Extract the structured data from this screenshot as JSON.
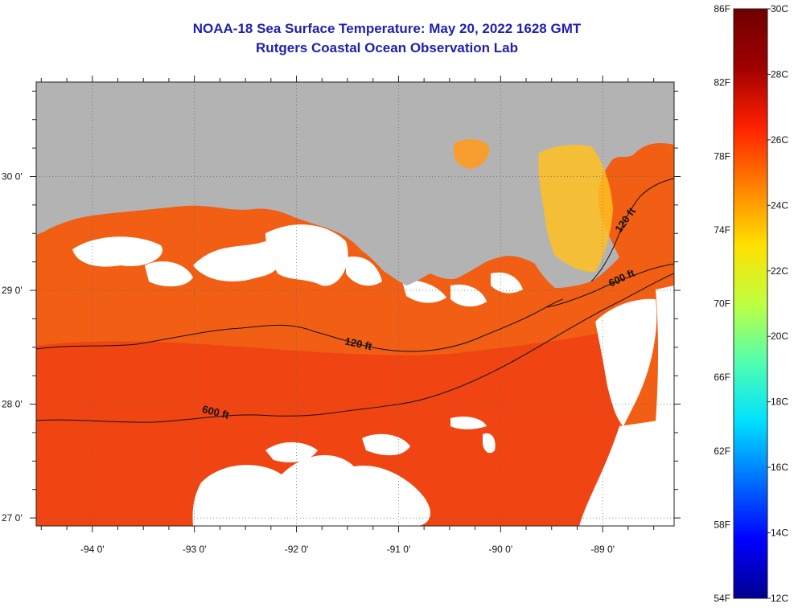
{
  "title": {
    "line1": "NOAA-18 Sea Surface Temperature:  May 20, 2022 1628 GMT",
    "line2": "Rutgers Coastal Ocean Observation Lab"
  },
  "map": {
    "lon_range": [
      -94.55,
      -88.3
    ],
    "lat_range": [
      26.93,
      30.83
    ],
    "lon_ticks": [
      {
        "value": -94,
        "label": "-94 0'"
      },
      {
        "value": -93,
        "label": "-93 0'"
      },
      {
        "value": -92,
        "label": "-92 0'"
      },
      {
        "value": -91,
        "label": "-91 0'"
      },
      {
        "value": -90,
        "label": "-90 0'"
      },
      {
        "value": -89,
        "label": "-89 0'"
      }
    ],
    "lat_ticks": [
      {
        "value": 30,
        "label": "30 0'"
      },
      {
        "value": 29,
        "label": "29 0'"
      },
      {
        "value": 28,
        "label": "28 0'"
      },
      {
        "value": 27,
        "label": "27 0'"
      }
    ],
    "contours": [
      {
        "label": "120 ft",
        "label_pos": [
          -91.4,
          28.5
        ],
        "label_rot": 12
      },
      {
        "label": "600 ft",
        "label_pos": [
          -92.8,
          27.9
        ],
        "label_rot": 14
      },
      {
        "label": "120 ft",
        "label_pos": [
          -88.75,
          29.6
        ],
        "label_rot": -55
      },
      {
        "label": "600 ft",
        "label_pos": [
          -88.8,
          29.08
        ],
        "label_rot": -25
      }
    ],
    "colors": {
      "land": "#b3b3b3",
      "ocean_warm": "#ee3010",
      "ocean_mid": "#f05a10",
      "cloud": "#ffffff",
      "shallow_cool": "#ffc020"
    }
  },
  "colorbar": {
    "fahrenheit_labels": [
      "86F",
      "82F",
      "78F",
      "74F",
      "70F",
      "66F",
      "62F",
      "58F",
      "54F"
    ],
    "celsius_labels": [
      "30C",
      "28C",
      "26C",
      "24C",
      "22C",
      "20C",
      "18C",
      "16C",
      "14C",
      "12C"
    ],
    "range_celsius": [
      12,
      30
    ],
    "colormap": [
      "#00008f",
      "#0000ff",
      "#0070ff",
      "#00e0ff",
      "#50ffb0",
      "#c0ff40",
      "#ffe000",
      "#ff8000",
      "#ff2000",
      "#a00000",
      "#700000"
    ]
  }
}
